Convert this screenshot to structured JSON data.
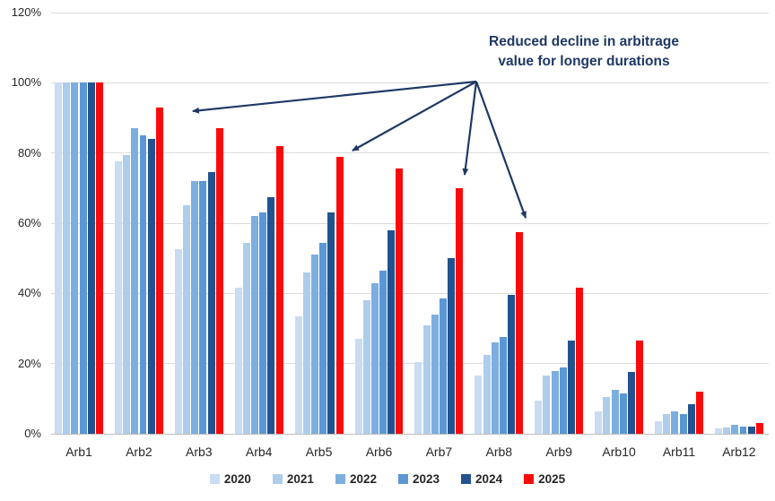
{
  "annotation": {
    "line1": "Reduced decline in arbitrage",
    "line2": "value for longer durations",
    "color": "#1F3864"
  },
  "chart_data": {
    "type": "bar",
    "title": "",
    "xlabel": "",
    "ylabel": "",
    "ylim": [
      0,
      120
    ],
    "yticks": [
      "0%",
      "20%",
      "40%",
      "60%",
      "80%",
      "100%",
      "120%"
    ],
    "grid": true,
    "legend_position": "bottom",
    "categories": [
      "Arb1",
      "Arb2",
      "Arb3",
      "Arb4",
      "Arb5",
      "Arb6",
      "Arb7",
      "Arb8",
      "Arb9",
      "Arb10",
      "Arb11",
      "Arb12"
    ],
    "series": [
      {
        "name": "2020",
        "color": "#C9DCF2",
        "values": [
          100,
          77.5,
          52.5,
          41.5,
          33.5,
          27,
          20.5,
          16.5,
          9.5,
          6.5,
          3.5,
          1.5
        ]
      },
      {
        "name": "2021",
        "color": "#AECDEB",
        "values": [
          100,
          79.5,
          65,
          54.5,
          46,
          38,
          31,
          22.5,
          16.5,
          10.5,
          5.5,
          1.7
        ]
      },
      {
        "name": "2022",
        "color": "#7DAEE0",
        "values": [
          100,
          87,
          72,
          62,
          51,
          43,
          34,
          26,
          18,
          12.5,
          6.5,
          2.5
        ]
      },
      {
        "name": "2023",
        "color": "#5B97D5",
        "values": [
          100,
          85,
          72,
          63,
          54.5,
          46.5,
          38.5,
          27.5,
          19,
          11.5,
          5.5,
          2
        ]
      },
      {
        "name": "2024",
        "color": "#22538F",
        "values": [
          100,
          84,
          74.5,
          67.5,
          63,
          58,
          50,
          39.5,
          26.5,
          17.5,
          8.5,
          2
        ]
      },
      {
        "name": "2025",
        "color": "#FA0A0A",
        "values": [
          100,
          93,
          87,
          82,
          79,
          75.5,
          70,
          57.5,
          41.5,
          26.5,
          12,
          3
        ]
      }
    ]
  }
}
